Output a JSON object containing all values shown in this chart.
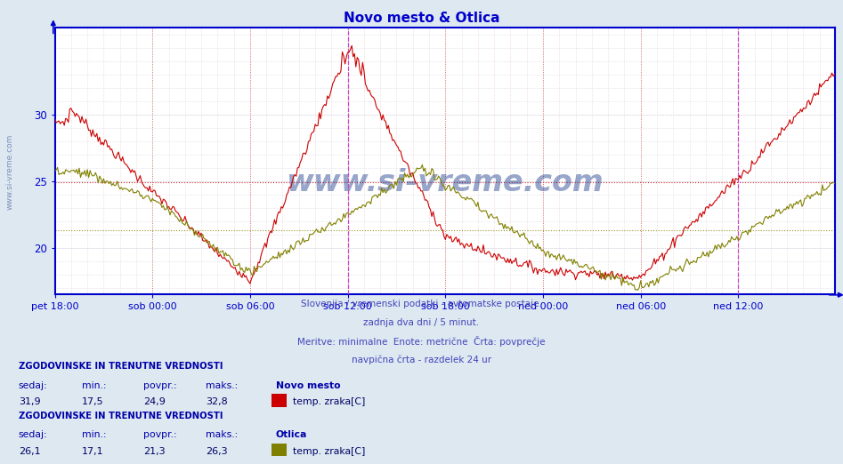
{
  "title": "Novo mesto & Otlica",
  "title_color": "#0000cc",
  "bg_color": "#dde8f0",
  "plot_bg_color": "#ffffff",
  "axis_color": "#0000cc",
  "tick_label_color": "#0000cc",
  "ylabel_values": [
    20,
    25,
    30
  ],
  "ylim": [
    16.5,
    36.5
  ],
  "xlim": [
    0,
    575
  ],
  "x_tick_labels": [
    "pet 18:00",
    "sob 00:00",
    "sob 06:00",
    "sob 12:00",
    "sob 18:00",
    "ned 00:00",
    "ned 06:00",
    "ned 12:00"
  ],
  "x_tick_positions": [
    0,
    72,
    144,
    216,
    288,
    360,
    432,
    504
  ],
  "novo_color": "#cc0000",
  "otlica_color": "#808000",
  "watermark": "www.si-vreme.com",
  "watermark_color": "#1a3a8a",
  "info_line1": "Slovenija / vremenski podatki - avtomatske postaje.",
  "info_line2": "zadnja dva dni / 5 minut.",
  "info_line3": "Meritve: minimalne  Enote: metrične  Črta: povprečje",
  "info_line4": "navpična črta - razdelek 24 ur",
  "station1_name": "Novo mesto",
  "station1_label": "ZGODOVINSKE IN TRENUTNE VREDNOSTI",
  "station1_sedaj": "31,9",
  "station1_min": "17,5",
  "station1_povpr": "24,9",
  "station1_maks": "32,8",
  "station1_series": "temp. zraka[C]",
  "station2_name": "Otlica",
  "station2_label": "ZGODOVINSKE IN TRENUTNE VREDNOSTI",
  "station2_sedaj": "26,1",
  "station2_min": "17,1",
  "station2_povpr": "21,3",
  "station2_maks": "26,3",
  "station2_series": "temp. zraka[C]",
  "vline_positions": [
    216,
    504
  ],
  "hline_value_novo": 24.9,
  "hline_value_otlica": 21.3,
  "hgrid_major": [
    20,
    25,
    30
  ],
  "hgrid_minor_step": 1,
  "vgrid_major_step": 72,
  "vgrid_minor_step": 12
}
